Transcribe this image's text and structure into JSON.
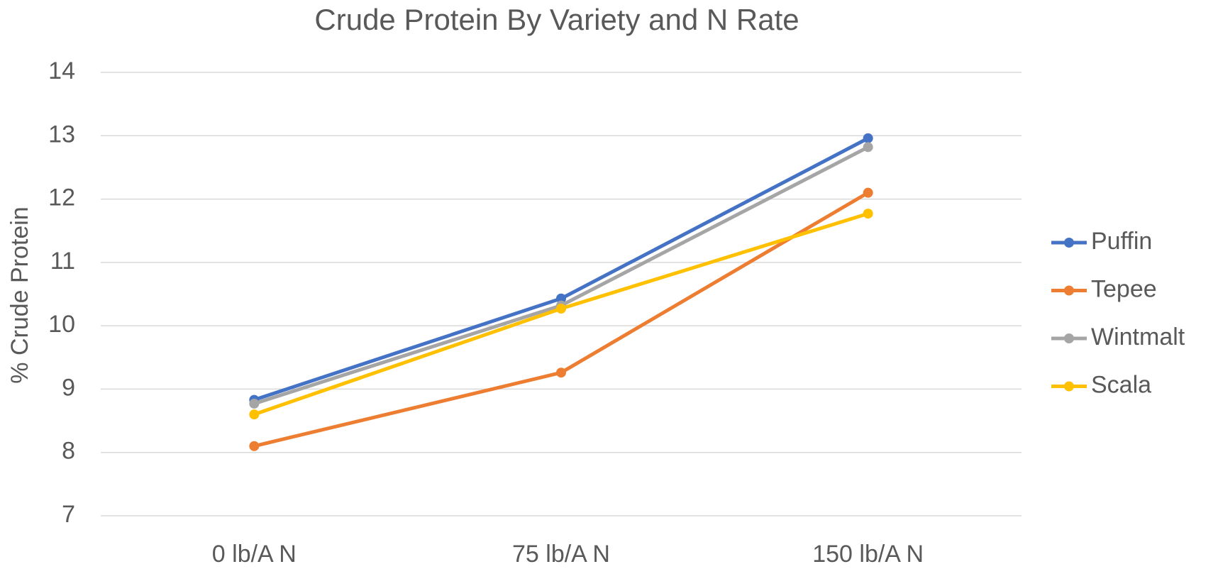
{
  "chart_data": {
    "type": "line",
    "title": "Crude Protein By Variety and N Rate",
    "y_label": "% Crude Protein",
    "categories": [
      "0 lb/A N",
      "75 lb/A N",
      "150 lb/A N"
    ],
    "series": [
      {
        "name": "Puffin",
        "color": "#4472c4",
        "values": [
          8.83,
          10.43,
          12.96
        ]
      },
      {
        "name": "Tepee",
        "color": "#ed7d31",
        "values": [
          8.1,
          9.26,
          12.1
        ]
      },
      {
        "name": "Wintmalt",
        "color": "#a5a5a5",
        "values": [
          8.77,
          10.32,
          12.82
        ]
      },
      {
        "name": "Scala",
        "color": "#ffc000",
        "values": [
          8.6,
          10.27,
          11.77
        ]
      }
    ],
    "ylim": [
      7,
      14
    ],
    "yticks": [
      7,
      8,
      9,
      10,
      11,
      12,
      13,
      14
    ],
    "grid": true,
    "legend": "right"
  }
}
